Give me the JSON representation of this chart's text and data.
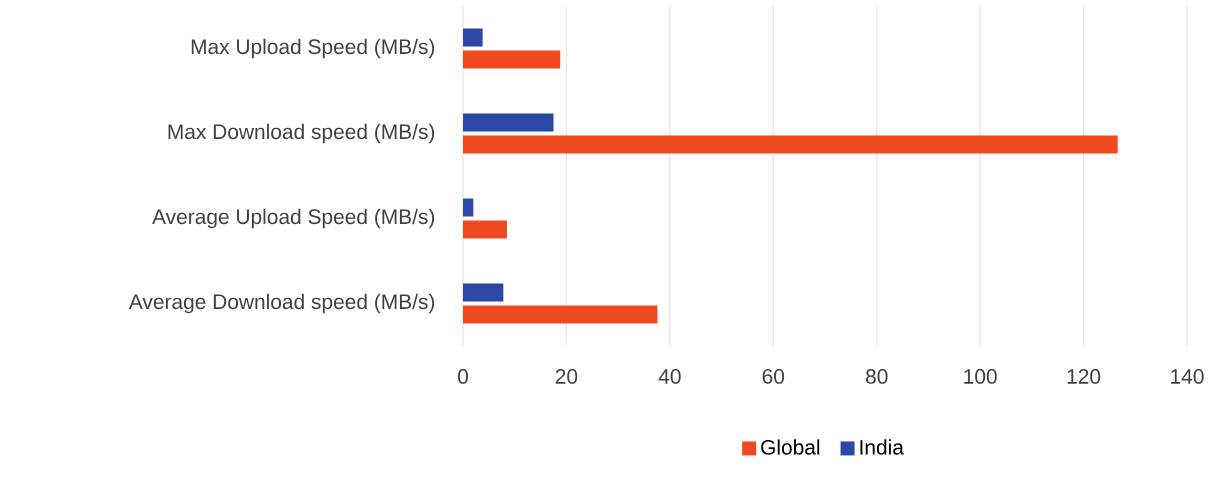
{
  "chart_data": {
    "type": "bar",
    "orientation": "horizontal",
    "categories": [
      "Max Upload Speed (MB/s)",
      "Max Download speed (MB/s)",
      "Average Upload Speed (MB/s)",
      "Average Download speed (MB/s)"
    ],
    "series": [
      {
        "name": "Global",
        "color": "#ef4a1f",
        "values": [
          18.8,
          126.6,
          8.5,
          37.6
        ]
      },
      {
        "name": "India",
        "color": "#2b48a6",
        "values": [
          3.8,
          17.5,
          2.0,
          7.8
        ]
      }
    ],
    "xlim": [
      0,
      140
    ],
    "xticks": [
      0,
      20,
      40,
      60,
      80,
      100,
      120,
      140
    ],
    "grid": "x",
    "legend": "bottom"
  }
}
